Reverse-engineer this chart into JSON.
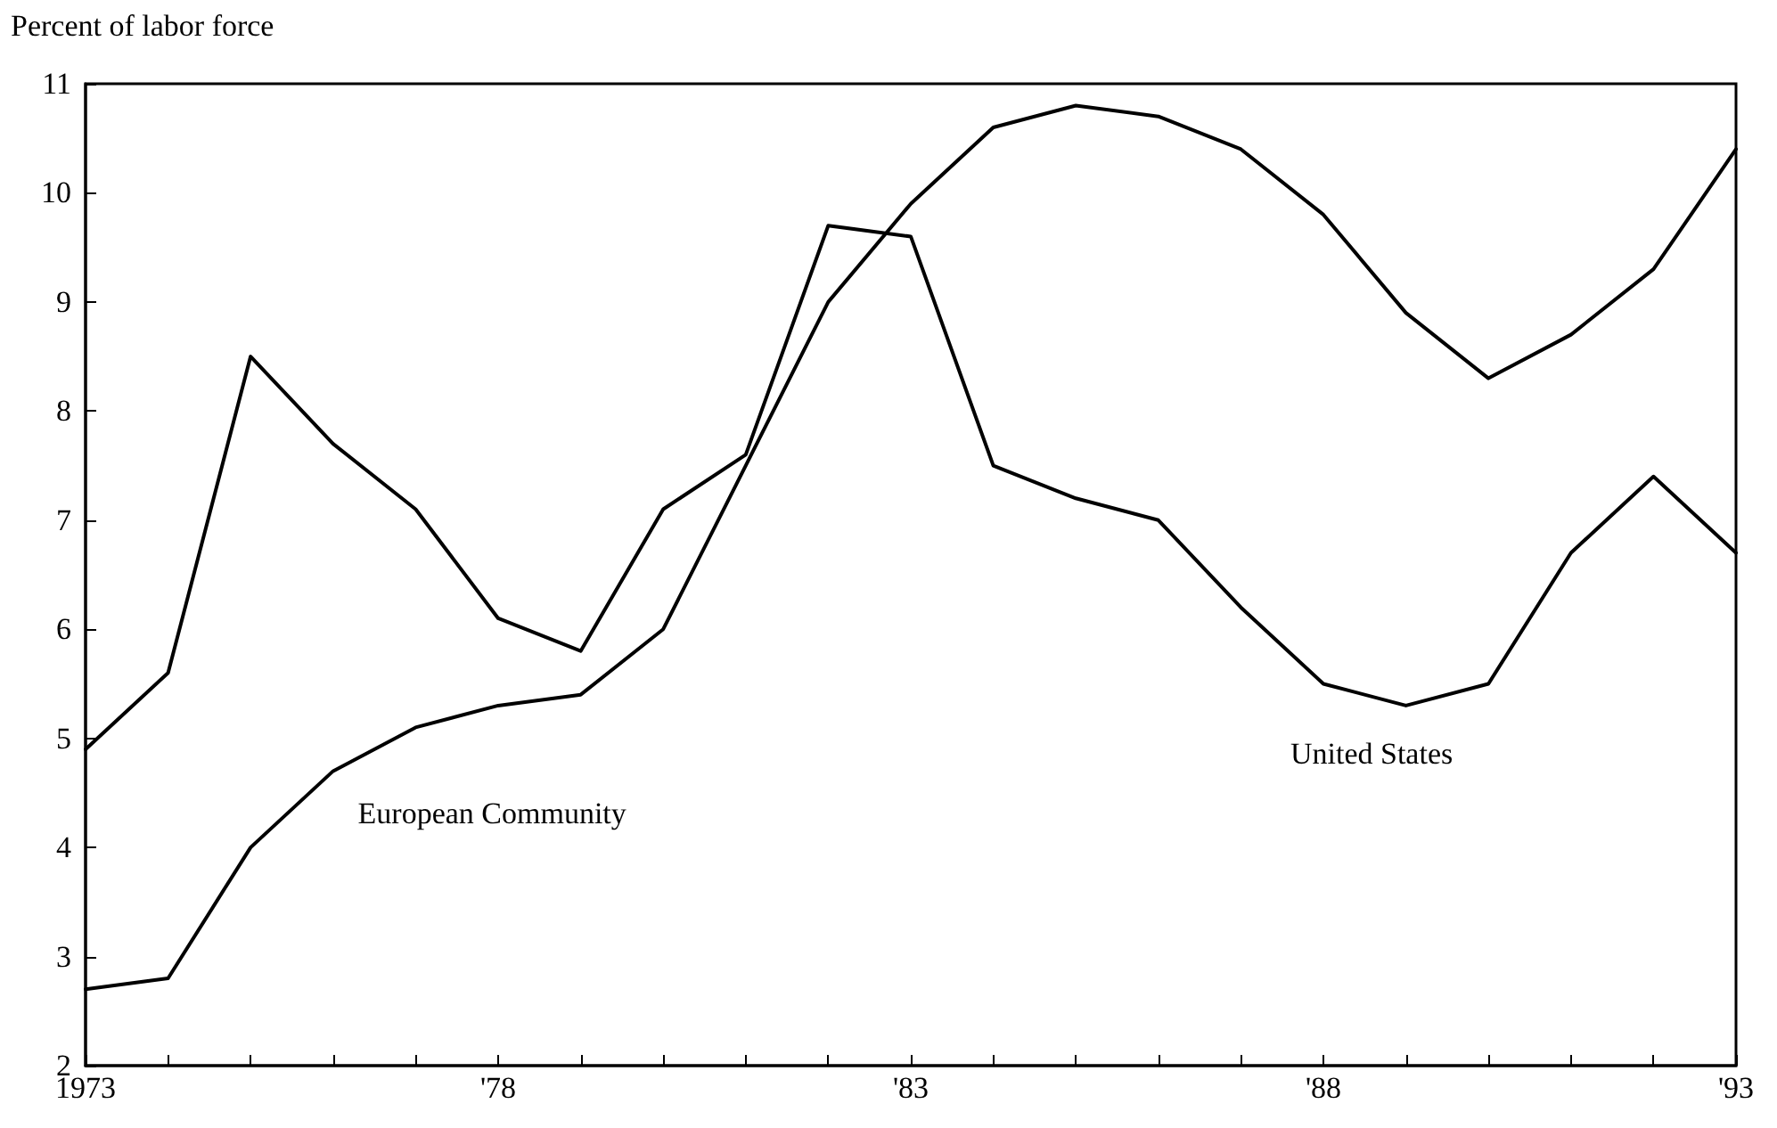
{
  "chart_data": {
    "type": "line",
    "ylabel": "Percent of labor force",
    "x": [
      1973,
      1974,
      1975,
      1976,
      1977,
      1978,
      1979,
      1980,
      1981,
      1982,
      1983,
      1984,
      1985,
      1986,
      1987,
      1988,
      1989,
      1990,
      1991,
      1992,
      1993
    ],
    "series": [
      {
        "name": "United States",
        "color": "#000000",
        "values": [
          4.9,
          5.6,
          8.5,
          7.7,
          7.1,
          6.1,
          5.8,
          7.1,
          7.6,
          9.7,
          9.6,
          7.5,
          7.2,
          7.0,
          6.2,
          5.5,
          5.3,
          5.5,
          6.7,
          7.4,
          6.7
        ]
      },
      {
        "name": "European Community",
        "color": "#000000",
        "values": [
          2.7,
          2.8,
          4.0,
          4.7,
          5.1,
          5.3,
          5.4,
          6.0,
          7.5,
          9.0,
          9.9,
          10.6,
          10.8,
          10.7,
          10.4,
          9.8,
          8.9,
          8.3,
          8.7,
          9.3,
          10.4
        ]
      }
    ],
    "xlim": [
      1973,
      1993
    ],
    "xticks": [
      1973,
      {
        "value": 1974,
        "label": null
      },
      {
        "value": 1975,
        "label": null
      },
      {
        "value": 1976,
        "label": null
      },
      {
        "value": 1977,
        "label": null
      },
      {
        "value": 1978,
        "label": "'78"
      },
      {
        "value": 1979,
        "label": null
      },
      {
        "value": 1980,
        "label": null
      },
      {
        "value": 1981,
        "label": null
      },
      {
        "value": 1982,
        "label": null
      },
      {
        "value": 1983,
        "label": "'83"
      },
      {
        "value": 1984,
        "label": null
      },
      {
        "value": 1985,
        "label": null
      },
      {
        "value": 1986,
        "label": null
      },
      {
        "value": 1987,
        "label": null
      },
      {
        "value": 1988,
        "label": "'88"
      },
      {
        "value": 1989,
        "label": null
      },
      {
        "value": 1990,
        "label": null
      },
      {
        "value": 1991,
        "label": null
      },
      {
        "value": 1992,
        "label": null
      },
      {
        "value": 1993,
        "label": "'93"
      }
    ],
    "ylim": [
      2,
      11
    ],
    "yticks": [
      2,
      3,
      4,
      5,
      6,
      7,
      8,
      9,
      10,
      11
    ],
    "grid": false,
    "legend": false,
    "marker": "none",
    "line_style": "solid"
  }
}
